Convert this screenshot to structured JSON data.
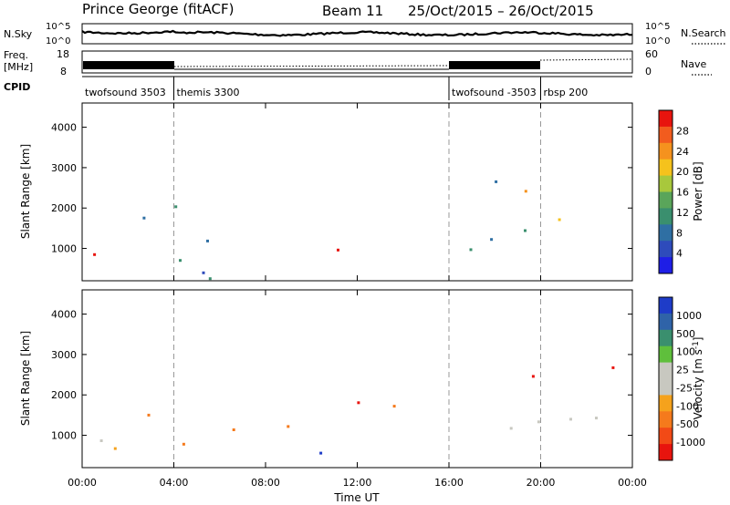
{
  "header": {
    "station": "Prince George (fitACF)",
    "beam": "Beam 11",
    "date_range": "25/Oct/2015 – 26/Oct/2015"
  },
  "strips": {
    "nsky": {
      "label": "N.Sky",
      "left_ticks": [
        "10^5",
        "10^0"
      ],
      "right_ticks": [
        "10^5",
        "10^0"
      ],
      "right_label": "N.Search"
    },
    "freq": {
      "label_line1": "Freq.",
      "label_line2": "[MHz]",
      "left_ticks": [
        "18",
        "8"
      ],
      "right_ticks": [
        "60",
        "0"
      ],
      "right_label": "Nave"
    },
    "cpid": {
      "label": "CPID",
      "segments": [
        {
          "start": 0.0,
          "end": 4.0,
          "label": "twofsound 3503"
        },
        {
          "start": 4.0,
          "end": 16.0,
          "label": "themis 3300"
        },
        {
          "start": 16.0,
          "end": 20.0,
          "label": "twofsound -3503"
        },
        {
          "start": 20.0,
          "end": 24.0,
          "label": "rbsp 200"
        }
      ]
    }
  },
  "chart_data": [
    {
      "type": "heatmap",
      "panel": "power",
      "ylabel": "Slant Range [km]",
      "ylim": [
        200,
        4600
      ],
      "y_ticks": [
        "1000",
        "2000",
        "3000",
        "4000"
      ],
      "xlim": [
        0,
        24
      ],
      "colorbar": {
        "label": "Power [dB]",
        "ticks": [
          "28",
          "24",
          "20",
          "16",
          "12",
          "8",
          "4"
        ],
        "colors": [
          "#e8140e",
          "#f25c1e",
          "#f5921e",
          "#f5c21c",
          "#a8c83c",
          "#5aa55a",
          "#3a8f6e",
          "#2f6fa3",
          "#2e4bbb",
          "#1e1ee6"
        ]
      },
      "regions": [
        {
          "x": [
            0.0,
            4.4
          ],
          "y": [
            700,
            2200
          ],
          "level": "moderate"
        },
        {
          "x": [
            0.4,
            2.6
          ],
          "y": [
            800,
            1400
          ],
          "level": "strong"
        },
        {
          "x": [
            10.8,
            13.6
          ],
          "y": [
            900,
            2000
          ],
          "level": "strong"
        },
        {
          "x": [
            15.8,
            24.0
          ],
          "y": [
            800,
            1800
          ],
          "level": "moderate"
        },
        {
          "x": [
            16.2,
            24.0
          ],
          "y": [
            2200,
            2800
          ],
          "level": "moderate"
        },
        {
          "x": [
            4.5,
            10.5
          ],
          "y": [
            200,
            1300
          ],
          "level": "weak"
        }
      ]
    },
    {
      "type": "heatmap",
      "panel": "velocity",
      "ylabel": "Slant Range [km]",
      "ylim": [
        200,
        4600
      ],
      "y_ticks": [
        "1000",
        "2000",
        "3000",
        "4000"
      ],
      "xlim": [
        0,
        24
      ],
      "x_ticks": [
        "00:00",
        "04:00",
        "08:00",
        "12:00",
        "16:00",
        "20:00",
        "00:00"
      ],
      "xlabel": "Time UT",
      "colorbar": {
        "label": "Velocity [m s^-1]",
        "ticks": [
          "1000",
          "500",
          "100",
          "25",
          "-25",
          "-100",
          "-500",
          "-1000"
        ],
        "colors": [
          "#1e3cc8",
          "#2f63a8",
          "#3a8f6e",
          "#5fbf3c",
          "#c8c8c0",
          "#c8c8c0",
          "#f5a21c",
          "#f57a1c",
          "#f24a16",
          "#e8140e"
        ]
      },
      "regions": [
        {
          "x": [
            0.0,
            4.4
          ],
          "y": [
            700,
            2200
          ],
          "level": "negative"
        },
        {
          "x": [
            0.2,
            1.6
          ],
          "y": [
            800,
            1900
          ],
          "level": "near-zero"
        },
        {
          "x": [
            10.6,
            13.8
          ],
          "y": [
            900,
            2000
          ],
          "level": "mixed"
        },
        {
          "x": [
            15.8,
            24.0
          ],
          "y": [
            800,
            1800
          ],
          "level": "near-zero"
        },
        {
          "x": [
            16.2,
            24.0
          ],
          "y": [
            2200,
            2800
          ],
          "level": "mixed"
        },
        {
          "x": [
            4.5,
            10.5
          ],
          "y": [
            200,
            1300
          ],
          "level": "mixed"
        }
      ]
    }
  ]
}
